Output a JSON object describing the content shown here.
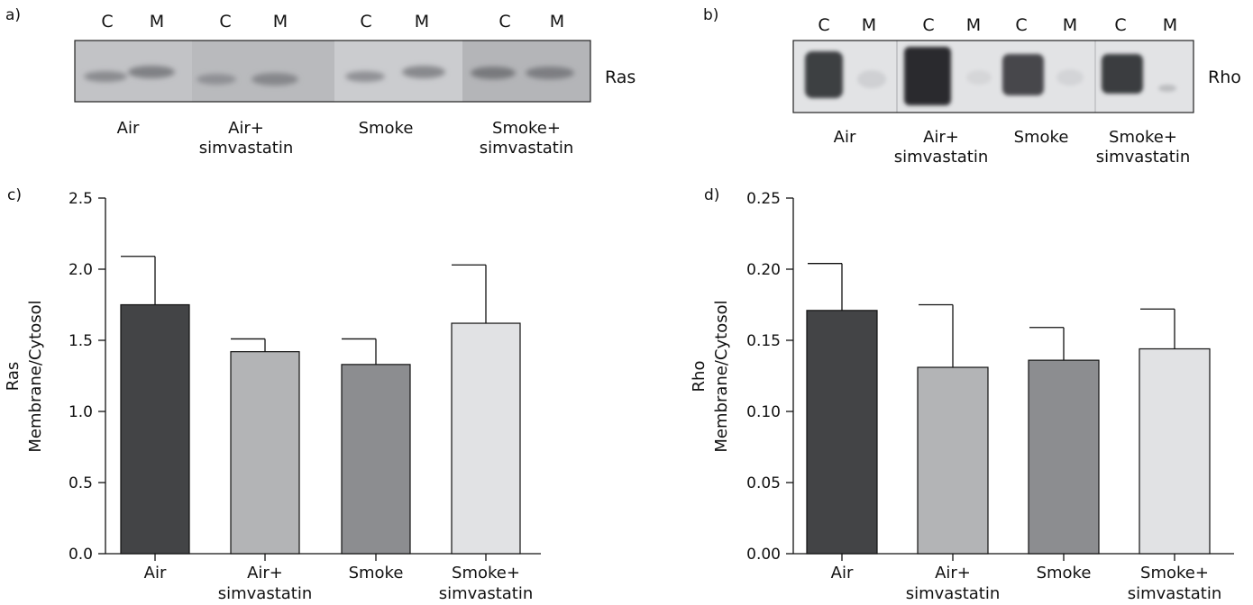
{
  "panel_labels": {
    "a": "a)",
    "b": "b)",
    "c": "c)",
    "d": "d)"
  },
  "blots": [
    {
      "panel": "a",
      "protein": "Ras",
      "lane_labels": [
        "C",
        "M",
        "C",
        "M",
        "C",
        "M",
        "C",
        "M"
      ],
      "groups": [
        [
          "Air"
        ],
        [
          "Air+",
          "simvastatin"
        ],
        [
          "Smoke"
        ],
        [
          "Smoke+",
          "simvastatin"
        ]
      ]
    },
    {
      "panel": "b",
      "protein": "Rho",
      "lane_labels": [
        "C",
        "M",
        "C",
        "M",
        "C",
        "M",
        "C",
        "M"
      ],
      "groups": [
        [
          "Air"
        ],
        [
          "Air+",
          "simvastatin"
        ],
        [
          "Smoke"
        ],
        [
          "Smoke+",
          "simvastatin"
        ]
      ]
    }
  ],
  "chart_data": [
    {
      "panel": "c",
      "type": "bar",
      "categories": [
        [
          "Air"
        ],
        [
          "Air+",
          "simvastatin"
        ],
        [
          "Smoke"
        ],
        [
          "Smoke+",
          "simvastatin"
        ]
      ],
      "values": [
        1.75,
        1.42,
        1.33,
        1.62
      ],
      "errors": [
        0.34,
        0.09,
        0.18,
        0.41
      ],
      "colors": [
        "#434446",
        "#b3b4b6",
        "#8c8d90",
        "#e1e2e4"
      ],
      "ylabel_lines": [
        "Ras",
        "Membrane/Cytosol"
      ],
      "ylim": [
        0,
        2.5
      ],
      "yticks": [
        "0.0",
        "0.5",
        "1.0",
        "1.5",
        "2.0",
        "2.5"
      ]
    },
    {
      "panel": "d",
      "type": "bar",
      "categories": [
        [
          "Air"
        ],
        [
          "Air+",
          "simvastatin"
        ],
        [
          "Smoke"
        ],
        [
          "Smoke+",
          "simvastatin"
        ]
      ],
      "values": [
        0.171,
        0.131,
        0.136,
        0.144
      ],
      "errors": [
        0.033,
        0.044,
        0.023,
        0.028
      ],
      "colors": [
        "#434446",
        "#b3b4b6",
        "#8c8d90",
        "#e1e2e4"
      ],
      "ylabel_lines": [
        "Rho",
        "Membrane/Cytosol"
      ],
      "ylim": [
        0,
        0.25
      ],
      "yticks": [
        "0.00",
        "0.05",
        "0.10",
        "0.15",
        "0.20",
        "0.25"
      ]
    }
  ]
}
